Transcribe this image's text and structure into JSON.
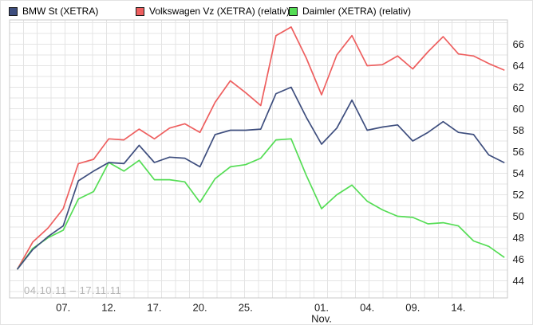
{
  "chart_data": {
    "type": "line",
    "title": "",
    "period_label": "04.10.11 – 17.11.11",
    "n_points": 33,
    "grid": true,
    "legend_position": "top",
    "ylabel": "",
    "xlabel": "",
    "y_ticks": [
      44,
      46,
      48,
      50,
      52,
      54,
      56,
      58,
      60,
      62,
      64,
      66
    ],
    "ylim": [
      42.4,
      68.3
    ],
    "x_tick_labels": [
      {
        "label": "07.",
        "index": 3
      },
      {
        "label": "12.",
        "index": 6
      },
      {
        "label": "17.",
        "index": 9
      },
      {
        "label": "20.",
        "index": 12
      },
      {
        "label": "25.",
        "index": 15
      },
      {
        "label": "01.",
        "index": 20,
        "sub": "Nov."
      },
      {
        "label": "04.",
        "index": 23
      },
      {
        "label": "09.",
        "index": 26
      },
      {
        "label": "14.",
        "index": 29
      }
    ],
    "series": [
      {
        "name": "BMW St (XETRA)",
        "color": "#3e4e7e",
        "values": [
          45.1,
          46.9,
          48.1,
          49.1,
          53.3,
          54.2,
          55.0,
          54.9,
          56.6,
          55.0,
          55.5,
          55.4,
          54.6,
          57.6,
          58.0,
          58.0,
          58.1,
          61.4,
          62.0,
          59.2,
          56.7,
          58.2,
          60.8,
          58.0,
          58.3,
          58.5,
          57.0,
          57.8,
          58.8,
          57.8,
          57.6,
          55.7,
          55.0
        ]
      },
      {
        "name": "Volkswagen Vz (XETRA) (relativ)",
        "color": "#ee5f5f",
        "values": [
          45.1,
          47.6,
          48.9,
          50.7,
          54.9,
          55.3,
          57.2,
          57.1,
          58.1,
          57.2,
          58.2,
          58.6,
          57.8,
          60.6,
          62.6,
          61.5,
          60.3,
          66.8,
          67.6,
          64.7,
          61.3,
          65.0,
          66.8,
          64.0,
          64.1,
          64.9,
          63.7,
          65.3,
          66.7,
          65.1,
          64.9,
          64.2,
          63.6
        ]
      },
      {
        "name": "Daimler (XETRA) (relativ)",
        "color": "#55dd55",
        "values": [
          45.1,
          47.0,
          48.0,
          48.7,
          51.6,
          52.3,
          55.0,
          54.2,
          55.2,
          53.4,
          53.4,
          53.2,
          51.3,
          53.5,
          54.6,
          54.8,
          55.4,
          57.1,
          57.2,
          53.8,
          50.7,
          52.0,
          52.9,
          51.4,
          50.6,
          50.0,
          49.9,
          49.3,
          49.4,
          49.1,
          47.7,
          47.2,
          46.2
        ]
      }
    ],
    "colors": {
      "grid": "#e4e4e4",
      "plot_border": "#c9c9c9",
      "axis_text": "#1b1b1b",
      "watermark": "#b5b5b5",
      "background": "#ffffff"
    }
  }
}
